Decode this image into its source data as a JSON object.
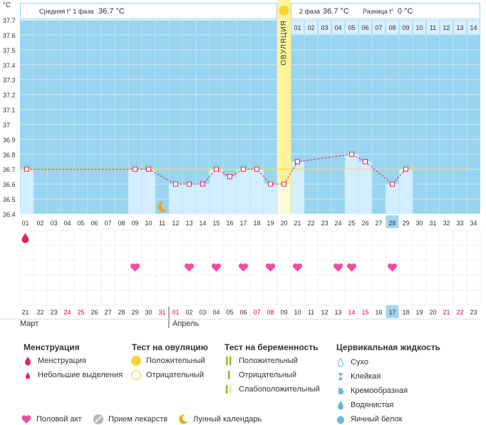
{
  "chart_data": {
    "type": "line",
    "y_unit": "°C",
    "ylim": [
      36.4,
      37.7
    ],
    "y_ticks": [
      "37.7",
      "37.6",
      "37.5",
      "37.4",
      "37.3",
      "37.2",
      "37.1",
      "37",
      "36.9",
      "36.8",
      "36.7",
      "36.6",
      "36.5",
      "36.4"
    ],
    "cycle_days": [
      "01",
      "02",
      "03",
      "04",
      "05",
      "06",
      "07",
      "08",
      "09",
      "10",
      "11",
      "12",
      "13",
      "14",
      "15",
      "16",
      "17",
      "18",
      "19",
      "20",
      "21",
      "22",
      "23",
      "24",
      "25",
      "26",
      "27",
      "28",
      "29",
      "30",
      "31",
      "32",
      "33",
      "34"
    ],
    "dates": [
      "21",
      "22",
      "23",
      "24",
      "25",
      "26",
      "27",
      "28",
      "29",
      "30",
      "31",
      "01",
      "02",
      "03",
      "04",
      "05",
      "06",
      "07",
      "08",
      "09",
      "10",
      "11",
      "12",
      "13",
      "14",
      "15",
      "16",
      "17",
      "18",
      "19",
      "20",
      "21",
      "22",
      "23"
    ],
    "date_weekend": [
      false,
      false,
      false,
      true,
      true,
      false,
      false,
      false,
      false,
      false,
      true,
      true,
      false,
      false,
      false,
      false,
      false,
      true,
      true,
      false,
      false,
      false,
      false,
      false,
      true,
      true,
      false,
      false,
      false,
      false,
      false,
      true,
      true,
      false
    ],
    "today_index": 27,
    "temperatures": [
      36.7,
      null,
      null,
      null,
      null,
      null,
      null,
      null,
      36.7,
      36.7,
      null,
      36.6,
      36.6,
      36.6,
      36.7,
      36.65,
      36.7,
      36.7,
      36.6,
      36.6,
      36.75,
      null,
      null,
      null,
      36.8,
      36.75,
      null,
      36.6,
      36.7,
      null,
      null,
      null,
      null,
      null
    ],
    "coverline": 36.7,
    "ovulation_index": 19,
    "ovulation_label": "ОВУЛЯЦИЯ",
    "post_ov_days": [
      "01",
      "02",
      "03",
      "04",
      "05",
      "06",
      "07",
      "08",
      "09",
      "10",
      "11",
      "12",
      "13",
      "14"
    ],
    "menstruation_days": [
      0
    ],
    "intercourse_days": [
      8,
      12,
      14,
      16,
      18,
      20,
      23,
      24,
      27
    ],
    "moon_days": [
      10
    ],
    "months": [
      {
        "name": "Март",
        "start": 0
      },
      {
        "name": "Апрель",
        "start": 11
      }
    ],
    "phase1": {
      "label": "Средняя t° 1 фаза",
      "value": "36.7 °C"
    },
    "phase2": {
      "label": "2 фаза",
      "value": "36.7 °C"
    },
    "diff": {
      "label": "Разница t°",
      "value": "0 °C"
    },
    "colors": {
      "bg": "#99d5f0",
      "bar": "#d3efff",
      "ovulation": "#fff39a",
      "marker": "#e0245e",
      "coverline": "#f3e23c",
      "heart": "#f04fa0",
      "today": "#a2d6ef",
      "weekend": "#d9003c"
    }
  },
  "legend": {
    "menstruation": {
      "title": "Менструация",
      "items": [
        "Менструация",
        "Небольшие выделения"
      ]
    },
    "ovulation_test": {
      "title": "Тест на овуляцию",
      "items": [
        "Положительный",
        "Отрицательный"
      ]
    },
    "pregnancy_test": {
      "title": "Тест на беременность",
      "items": [
        "Положительный",
        "Отрицательный",
        "Слабоположительный"
      ]
    },
    "cervical": {
      "title": "Цервикальная жидкость",
      "items": [
        "Сухо",
        "Клейкая",
        "Кремообразная",
        "Водянистая",
        "Яичный белок"
      ]
    },
    "bottom": [
      "Половой акт",
      "Прием лекарств",
      "Лунный календарь"
    ]
  }
}
